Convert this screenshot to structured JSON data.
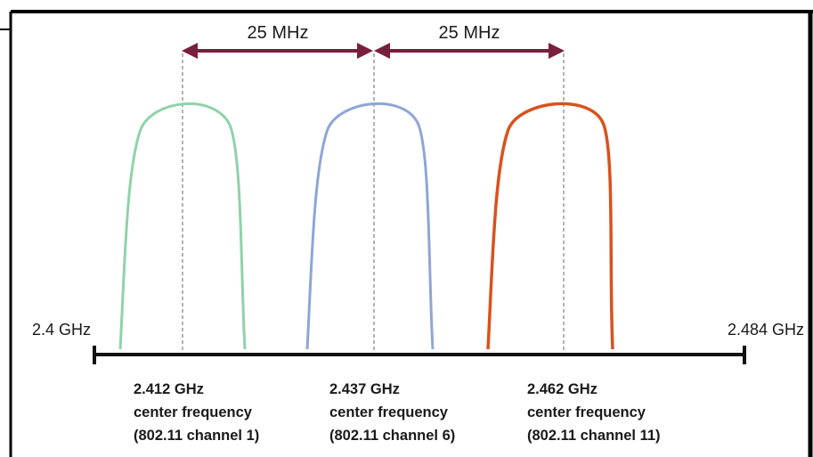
{
  "diagram": {
    "spacing_labels": [
      "25 MHz",
      "25 MHz"
    ],
    "band_start_label": "2.4 GHz",
    "band_end_label": "2.484 GHz",
    "channels": [
      {
        "frequency": "2.412 GHz",
        "caption": "center frequency",
        "channel_label": "(802.11 channel 1)",
        "color": "#8fd3a8"
      },
      {
        "frequency": "2.437 GHz",
        "caption": "center frequency",
        "channel_label": "(802.11 channel 6)",
        "color": "#8ea6d6"
      },
      {
        "frequency": "2.462 GHz",
        "caption": "center frequency",
        "channel_label": "(802.11 channel 11)",
        "color": "#d9521e"
      }
    ],
    "arrow_color": "#7a1f3a",
    "frame_color": "#000000"
  }
}
